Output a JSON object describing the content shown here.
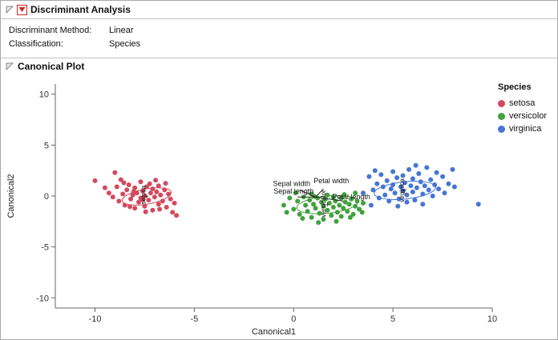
{
  "header": {
    "title": "Discriminant Analysis"
  },
  "info": {
    "method_label": "Discriminant Method:",
    "method_value": "Linear",
    "class_label": "Classification:",
    "class_value": "Species"
  },
  "canonical_header": {
    "title": "Canonical Plot"
  },
  "chart_data": {
    "type": "scatter",
    "title": "Canonical Plot",
    "xlabel": "Canonical1",
    "ylabel": "Canonical2",
    "xlim": [
      -12,
      10
    ],
    "ylim": [
      -11,
      11
    ],
    "xticks": [
      -10,
      -5,
      0,
      5,
      10
    ],
    "yticks": [
      -10,
      -5,
      0,
      5,
      10
    ],
    "legend_title": "Species",
    "legend_position": "right",
    "grid": false,
    "series": [
      {
        "name": "setosa",
        "color": "#d34a5e",
        "ellipse": {
          "cx": -7.4,
          "cy": -0.05,
          "rx": 1.25,
          "ry": 0.75,
          "angle": -10
        },
        "label_pos": [
          -7.45,
          0.1
        ],
        "points": [
          [
            -10.0,
            1.5
          ],
          [
            -9.3,
            0.3
          ],
          [
            -9.1,
            -0.1
          ],
          [
            -9.0,
            2.3
          ],
          [
            -8.9,
            0.9
          ],
          [
            -8.8,
            -0.5
          ],
          [
            -8.7,
            1.6
          ],
          [
            -8.6,
            0.2
          ],
          [
            -8.5,
            -0.9
          ],
          [
            -8.4,
            0.6
          ],
          [
            -8.3,
            1.1
          ],
          [
            -8.2,
            -0.3
          ],
          [
            -8.1,
            0.1
          ],
          [
            -8.0,
            -1.2
          ],
          [
            -8.0,
            0.8
          ],
          [
            -7.9,
            0.3
          ],
          [
            -7.8,
            -0.6
          ],
          [
            -7.7,
            1.4
          ],
          [
            -7.7,
            -0.2
          ],
          [
            -7.6,
            0.5
          ],
          [
            -7.5,
            -1.0
          ],
          [
            -7.5,
            0.0
          ],
          [
            -7.4,
            0.9
          ],
          [
            -7.3,
            -0.4
          ],
          [
            -7.2,
            0.3
          ],
          [
            -7.1,
            -1.4
          ],
          [
            -7.1,
            0.7
          ],
          [
            -7.0,
            -0.1
          ],
          [
            -6.9,
            0.4
          ],
          [
            -6.8,
            -0.8
          ],
          [
            -6.8,
            1.0
          ],
          [
            -6.7,
            0.1
          ],
          [
            -6.6,
            -0.5
          ],
          [
            -6.5,
            0.6
          ],
          [
            -6.4,
            -1.1
          ],
          [
            -6.3,
            0.2
          ],
          [
            -6.2,
            -0.3
          ],
          [
            -6.1,
            -1.6
          ],
          [
            -6.0,
            -0.7
          ],
          [
            -5.9,
            -1.9
          ],
          [
            -7.6,
            -0.35
          ],
          [
            -8.05,
            0.45
          ],
          [
            -7.25,
            1.2
          ],
          [
            -6.75,
            -1.3
          ],
          [
            -8.55,
            1.3
          ],
          [
            -9.5,
            0.8
          ],
          [
            -6.95,
            1.55
          ],
          [
            -7.45,
            -1.55
          ],
          [
            -8.25,
            -1.05
          ],
          [
            -6.45,
            1.25
          ]
        ]
      },
      {
        "name": "versicolor",
        "color": "#41a13d",
        "ellipse": {
          "cx": 1.7,
          "cy": -0.85,
          "rx": 1.55,
          "ry": 0.85,
          "angle": -6
        },
        "label_pos": [
          1.6,
          -0.75
        ],
        "points": [
          [
            -0.5,
            -0.9
          ],
          [
            -0.2,
            -0.2
          ],
          [
            0.0,
            -1.3
          ],
          [
            0.2,
            -0.5
          ],
          [
            0.3,
            -1.8
          ],
          [
            0.5,
            -0.1
          ],
          [
            0.6,
            -0.9
          ],
          [
            0.7,
            -1.5
          ],
          [
            0.8,
            -0.4
          ],
          [
            0.9,
            -2.1
          ],
          [
            1.0,
            -0.8
          ],
          [
            1.1,
            -1.2
          ],
          [
            1.2,
            -0.2
          ],
          [
            1.3,
            -1.7
          ],
          [
            1.4,
            -0.6
          ],
          [
            1.5,
            -1.0
          ],
          [
            1.5,
            -2.3
          ],
          [
            1.6,
            -0.3
          ],
          [
            1.7,
            -1.4
          ],
          [
            1.8,
            -0.7
          ],
          [
            1.9,
            -1.9
          ],
          [
            2.0,
            -0.1
          ],
          [
            2.0,
            -1.1
          ],
          [
            2.1,
            -0.5
          ],
          [
            2.2,
            -1.6
          ],
          [
            2.3,
            -0.9
          ],
          [
            2.4,
            -0.2
          ],
          [
            2.4,
            -2.0
          ],
          [
            2.5,
            -1.2
          ],
          [
            2.6,
            -0.6
          ],
          [
            2.7,
            -1.5
          ],
          [
            2.8,
            -0.8
          ],
          [
            2.9,
            -0.3
          ],
          [
            3.0,
            -1.8
          ],
          [
            3.1,
            -1.0
          ],
          [
            3.2,
            -0.5
          ],
          [
            3.3,
            -1.3
          ],
          [
            3.5,
            -0.7
          ],
          [
            0.1,
            0.3
          ],
          [
            0.9,
            0.2
          ],
          [
            1.7,
            0.1
          ],
          [
            2.55,
            0.15
          ],
          [
            3.1,
            0.3
          ],
          [
            1.25,
            -2.6
          ],
          [
            2.15,
            -2.5
          ],
          [
            0.45,
            -2.2
          ],
          [
            2.85,
            -2.1
          ],
          [
            3.45,
            -1.6
          ],
          [
            -0.35,
            -1.6
          ],
          [
            1.05,
            -0.05
          ]
        ]
      },
      {
        "name": "virginica",
        "color": "#4576d4",
        "ellipse": {
          "cx": 5.6,
          "cy": 0.55,
          "rx": 1.55,
          "ry": 0.85,
          "angle": -6
        },
        "label_pos": [
          5.55,
          0.55
        ],
        "points": [
          [
            3.8,
            1.9
          ],
          [
            4.0,
            0.6
          ],
          [
            4.2,
            1.2
          ],
          [
            4.3,
            -0.2
          ],
          [
            4.4,
            2.1
          ],
          [
            4.5,
            0.9
          ],
          [
            4.6,
            0.1
          ],
          [
            4.7,
            1.5
          ],
          [
            4.8,
            -0.5
          ],
          [
            4.9,
            0.7
          ],
          [
            5.0,
            2.4
          ],
          [
            5.0,
            1.1
          ],
          [
            5.1,
            0.3
          ],
          [
            5.2,
            1.8
          ],
          [
            5.3,
            -0.3
          ],
          [
            5.4,
            0.9
          ],
          [
            5.5,
            2.0
          ],
          [
            5.5,
            0.5
          ],
          [
            5.6,
            1.3
          ],
          [
            5.7,
            -0.6
          ],
          [
            5.7,
            0.1
          ],
          [
            5.8,
            2.6
          ],
          [
            5.9,
            1.0
          ],
          [
            6.0,
            0.4
          ],
          [
            6.0,
            1.7
          ],
          [
            6.1,
            -0.4
          ],
          [
            6.2,
            0.8
          ],
          [
            6.3,
            2.2
          ],
          [
            6.4,
            1.4
          ],
          [
            6.5,
            0.2
          ],
          [
            6.5,
            -0.8
          ],
          [
            6.6,
            1.0
          ],
          [
            6.7,
            2.8
          ],
          [
            6.8,
            0.6
          ],
          [
            6.9,
            1.6
          ],
          [
            7.0,
            0.0
          ],
          [
            7.1,
            1.1
          ],
          [
            7.2,
            2.3
          ],
          [
            7.3,
            0.7
          ],
          [
            7.5,
            1.9
          ],
          [
            7.6,
            0.3
          ],
          [
            7.8,
            1.2
          ],
          [
            8.0,
            2.6
          ],
          [
            8.1,
            0.9
          ],
          [
            9.3,
            -0.8
          ],
          [
            4.1,
            2.5
          ],
          [
            3.5,
            0.3
          ],
          [
            3.9,
            -0.9
          ],
          [
            5.25,
            -1.0
          ],
          [
            6.15,
            3.0
          ]
        ]
      }
    ],
    "biplot": {
      "center": [
        1.1,
        -0.1
      ],
      "rays": [
        {
          "label": "Sepal width",
          "end": [
            0.3,
            0.6
          ],
          "label_pos": [
            -0.1,
            1.0
          ],
          "rotate": false
        },
        {
          "label": "Petal width",
          "end": [
            1.5,
            0.7
          ],
          "label_pos": [
            1.9,
            1.25
          ],
          "rotate": false
        },
        {
          "label": "Sepal length",
          "end": [
            0.2,
            -0.1
          ],
          "label_pos": [
            0.0,
            0.25
          ],
          "rotate": false
        },
        {
          "label": "Petal length",
          "end": [
            2.5,
            -0.5
          ],
          "label_pos": [
            2.9,
            -0.3
          ],
          "rotate": false
        }
      ]
    }
  }
}
